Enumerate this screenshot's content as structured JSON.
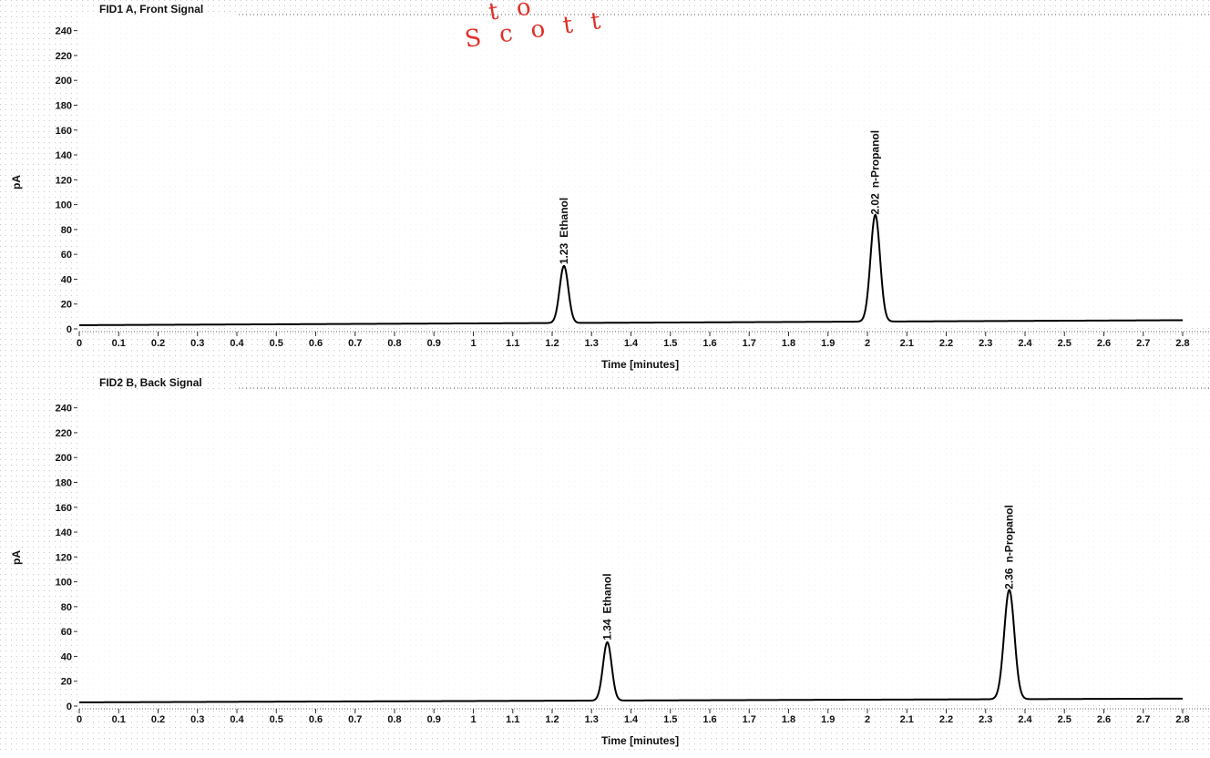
{
  "watermark": {
    "line1": "t o",
    "line2": "S c o t t s"
  },
  "chart_data": [
    {
      "type": "line",
      "title": "FID1 A, Front Signal",
      "xlabel": "Time [minutes]",
      "ylabel": "pA",
      "xlim": [
        0,
        2.8
      ],
      "ylim": [
        0,
        250
      ],
      "xticks": [
        0,
        0.1,
        0.2,
        0.3,
        0.4,
        0.5,
        0.6,
        0.7,
        0.8,
        0.9,
        1,
        1.1,
        1.2,
        1.3,
        1.4,
        1.5,
        1.6,
        1.7,
        1.8,
        1.9,
        2,
        2.1,
        2.2,
        2.3,
        2.4,
        2.5,
        2.6,
        2.7,
        2.8
      ],
      "yticks": [
        0,
        20,
        40,
        60,
        80,
        100,
        120,
        140,
        160,
        180,
        200,
        220,
        240
      ],
      "grid": true,
      "baseline": {
        "start": 3,
        "end": 7
      },
      "peaks": [
        {
          "rt": 1.23,
          "rt_label": "1.23",
          "name": "Ethanol",
          "height": 46,
          "width": 0.011
        },
        {
          "rt": 2.02,
          "rt_label": "2.02",
          "name": "n-Propanol",
          "height": 86,
          "width": 0.012
        }
      ]
    },
    {
      "type": "line",
      "title": "FID2 B, Back Signal",
      "xlabel": "Time [minutes]",
      "ylabel": "pA",
      "xlim": [
        0,
        2.8
      ],
      "ylim": [
        0,
        250
      ],
      "xticks": [
        0,
        0.1,
        0.2,
        0.3,
        0.4,
        0.5,
        0.6,
        0.7,
        0.8,
        0.9,
        1,
        1.1,
        1.2,
        1.3,
        1.4,
        1.5,
        1.6,
        1.7,
        1.8,
        1.9,
        2,
        2.1,
        2.2,
        2.3,
        2.4,
        2.5,
        2.6,
        2.7,
        2.8
      ],
      "yticks": [
        0,
        20,
        40,
        60,
        80,
        100,
        120,
        140,
        160,
        180,
        200,
        220,
        240
      ],
      "grid": true,
      "baseline": {
        "start": 3,
        "end": 6
      },
      "peaks": [
        {
          "rt": 1.34,
          "rt_label": "1.34",
          "name": "Ethanol",
          "height": 47,
          "width": 0.011
        },
        {
          "rt": 2.36,
          "rt_label": "2.36",
          "name": "n-Propanol",
          "height": 88,
          "width": 0.013
        }
      ]
    }
  ]
}
